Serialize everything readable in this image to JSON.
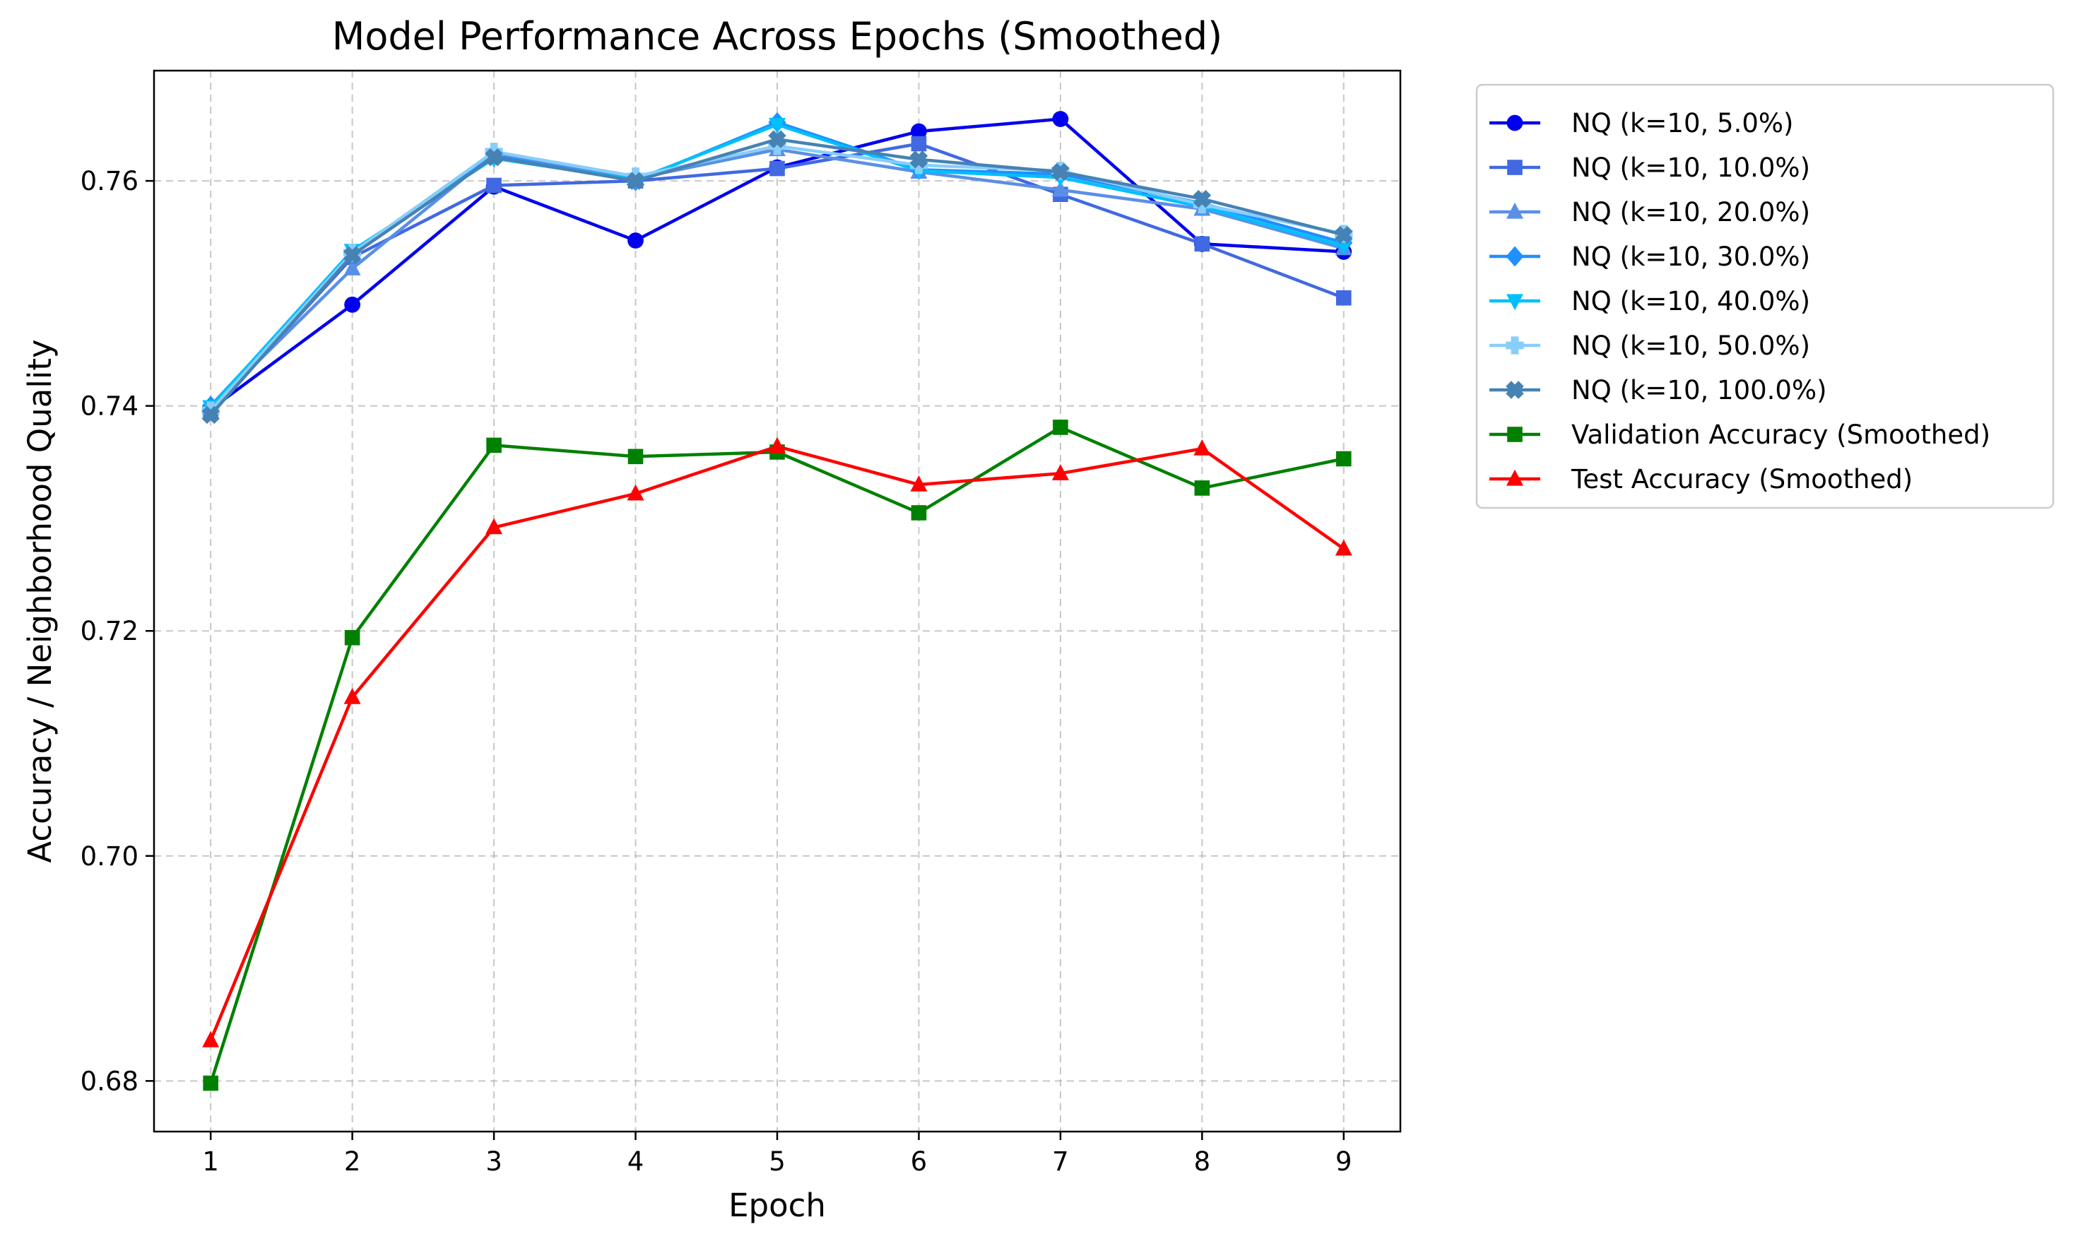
{
  "chart_data": {
    "type": "line",
    "title": "Model Performance Across Epochs (Smoothed)",
    "xlabel": "Epoch",
    "ylabel": "Accuracy / Neighborhood Quality",
    "x": [
      1,
      2,
      3,
      4,
      5,
      6,
      7,
      8,
      9
    ],
    "xlim": [
      0.6,
      9.4
    ],
    "ylim": [
      0.6755,
      0.7698
    ],
    "xticks": [
      "1",
      "2",
      "3",
      "4",
      "5",
      "6",
      "7",
      "8",
      "9"
    ],
    "yticks": [
      0.68,
      0.7,
      0.72,
      0.74,
      0.76
    ],
    "ytick_labels": [
      "0.68",
      "0.70",
      "0.72",
      "0.74",
      "0.76"
    ],
    "grid": true,
    "legend_position": "outside-right",
    "series": [
      {
        "name": "NQ (k=10, 5.0%)",
        "color": "#0000ee",
        "marker": "circle",
        "values": [
          0.7397,
          0.749,
          0.7595,
          0.7547,
          0.7612,
          0.7644,
          0.7655,
          0.7544,
          0.7537
        ]
      },
      {
        "name": "NQ (k=10, 10.0%)",
        "color": "#4169e1",
        "marker": "square",
        "values": [
          0.7394,
          0.7532,
          0.7596,
          0.76,
          0.7611,
          0.7633,
          0.7588,
          0.7544,
          0.7496
        ]
      },
      {
        "name": "NQ (k=10, 20.0%)",
        "color": "#5a8fe6",
        "marker": "triangle-up",
        "values": [
          0.7398,
          0.7522,
          0.7624,
          0.7602,
          0.7628,
          0.7608,
          0.7592,
          0.7575,
          0.754
        ]
      },
      {
        "name": "NQ (k=10, 30.0%)",
        "color": "#1e90ff",
        "marker": "diamond",
        "values": [
          0.74,
          0.7535,
          0.7622,
          0.76,
          0.7652,
          0.761,
          0.7606,
          0.758,
          0.7545
        ]
      },
      {
        "name": "NQ (k=10, 40.0%)",
        "color": "#00bfff",
        "marker": "triangle-down",
        "values": [
          0.7399,
          0.7538,
          0.762,
          0.7601,
          0.765,
          0.7609,
          0.7603,
          0.7577,
          0.7542
        ]
      },
      {
        "name": "NQ (k=10, 50.0%)",
        "color": "#87cefa",
        "marker": "plus",
        "values": [
          0.7396,
          0.7536,
          0.7626,
          0.7604,
          0.7631,
          0.7614,
          0.7609,
          0.7579,
          0.7553
        ]
      },
      {
        "name": "NQ (k=10, 100.0%)",
        "color": "#4682b4",
        "marker": "x",
        "values": [
          0.7392,
          0.7534,
          0.7621,
          0.76,
          0.7637,
          0.7619,
          0.7608,
          0.7584,
          0.7552
        ]
      },
      {
        "name": "Validation Accuracy (Smoothed)",
        "color": "#008000",
        "marker": "square",
        "values": [
          0.6798,
          0.7194,
          0.7365,
          0.7355,
          0.7359,
          0.7305,
          0.7381,
          0.7327,
          0.7353
        ]
      },
      {
        "name": "Test Accuracy (Smoothed)",
        "color": "#ff0000",
        "marker": "triangle-up",
        "values": [
          0.6836,
          0.7141,
          0.7292,
          0.7322,
          0.7364,
          0.733,
          0.734,
          0.7362,
          0.7273
        ]
      }
    ]
  }
}
